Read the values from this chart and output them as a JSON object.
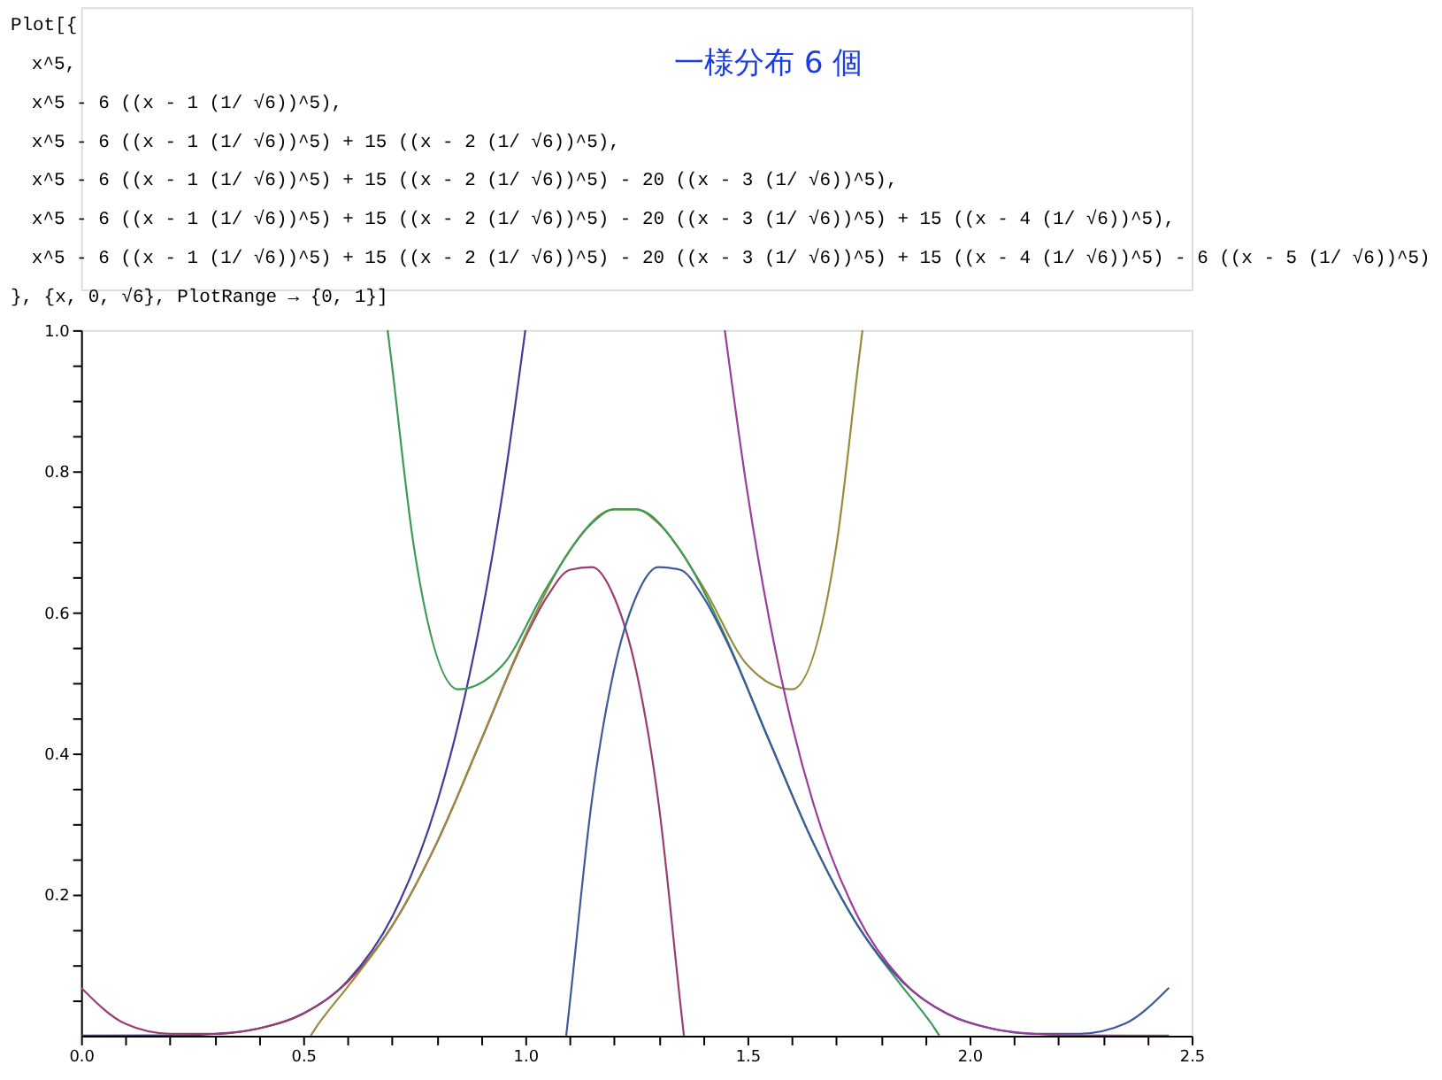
{
  "chart_data": {
    "type": "line",
    "title": "一様分布 6 個",
    "annotations": [
      "Plot[{",
      "x^5,",
      "x^5 - 6 ((x - 1 (1/ √6))^5),",
      "x^5 - 6 ((x - 1 (1/ √6))^5) + 15 ((x - 2 (1/ √6))^5),",
      "x^5 - 6 ((x - 1 (1/ √6))^5) + 15 ((x - 2 (1/ √6))^5) - 20 ((x - 3 (1/ √6))^5),",
      "x^5 - 6 ((x - 1 (1/ √6))^5) + 15 ((x - 2 (1/ √6))^5) - 20 ((x - 3 (1/ √6))^5) + 15 ((x - 4 (1/ √6))^5),",
      "x^5 - 6 ((x - 1 (1/ √6))^5) + 15 ((x - 2 (1/ √6))^5) - 20 ((x - 3 (1/ √6))^5) + 15 ((x - 4 (1/ √6))^5) - 6 ((x - 5 (1/ √6))^5)",
      "}, {x, 0, √6}, PlotRange → {0, 1}]"
    ],
    "series": [
      {
        "type": "line",
        "color": "#3d3d99",
        "x": [
          0,
          0.2,
          0.3,
          0.4,
          0.5,
          0.6,
          0.7,
          0.8,
          0.85,
          0.9,
          0.95,
          1.0
        ],
        "values": [
          0,
          0.0003,
          0.0024,
          0.0102,
          0.0313,
          0.0778,
          0.1681,
          0.3277,
          0.4437,
          0.5905,
          0.7738,
          1
        ]
      },
      {
        "type": "line",
        "color": "#993d71",
        "x": [
          0,
          0.1,
          0.2,
          0.3,
          0.4,
          0.5,
          0.6,
          0.7,
          0.8,
          0.9,
          1.0,
          1.05,
          1.1,
          1.15,
          1.2,
          1.25,
          1.3,
          1.35,
          1.357
        ],
        "values": [
          0.068,
          0.0167,
          0.0027,
          0.0025,
          0.0102,
          0.0312,
          0.0762,
          0.1554,
          0.2723,
          0.418,
          0.5646,
          0.6232,
          0.6601,
          0.6641,
          0.6215,
          0.5162,
          0.3294,
          0.0395,
          0
        ]
      },
      {
        "type": "line",
        "color": "#998b3d",
        "x": [
          0.517,
          0.53,
          0.55,
          0.6,
          0.7,
          0.8,
          0.9,
          1.0,
          1.1,
          1.2,
          1.25,
          1.3,
          1.4,
          1.5,
          1.6,
          1.7,
          1.75,
          1.759
        ],
        "values": [
          0,
          0.0127,
          0.0298,
          0.0691,
          0.1551,
          0.2723,
          0.4181,
          0.5677,
          0.6876,
          0.7459,
          0.7458,
          0.7258,
          0.6363,
          0.5252,
          0.4908,
          0.6936,
          0.9541,
          1
        ]
      },
      {
        "type": "line",
        "color": "#3d9956",
        "x": [
          0.69,
          0.699,
          0.749,
          0.849,
          0.949,
          1.049,
          1.149,
          1.199,
          1.249,
          1.349,
          1.449,
          1.549,
          1.649,
          1.749,
          1.849,
          1.899,
          1.919,
          1.932
        ],
        "values": [
          1,
          0.9541,
          0.6936,
          0.4908,
          0.5252,
          0.6363,
          0.7258,
          0.7458,
          0.7459,
          0.6876,
          0.5677,
          0.4181,
          0.2723,
          0.1551,
          0.0691,
          0.0298,
          0.0127,
          0
        ]
      },
      {
        "type": "line",
        "color": "#3d5999",
        "x": [
          1.092,
          1.099,
          1.149,
          1.199,
          1.249,
          1.299,
          1.349,
          1.399,
          1.449,
          1.549,
          1.649,
          1.749,
          1.849,
          1.949,
          2.049,
          2.149,
          2.249,
          2.349,
          2.449
        ],
        "values": [
          0,
          0.0395,
          0.3294,
          0.5162,
          0.6215,
          0.6641,
          0.6601,
          0.6232,
          0.5646,
          0.418,
          0.2723,
          0.1554,
          0.0762,
          0.0312,
          0.0102,
          0.0025,
          0.0027,
          0.0167,
          0.068
        ]
      },
      {
        "type": "line",
        "color": "#993d99",
        "x": [
          1.449,
          1.499,
          1.549,
          1.599,
          1.649,
          1.749,
          1.849,
          1.949,
          2.049,
          2.149,
          2.249,
          2.449
        ],
        "values": [
          1,
          0.7738,
          0.5905,
          0.4437,
          0.3277,
          0.1681,
          0.0778,
          0.0313,
          0.0102,
          0.0024,
          0.0003,
          0
        ]
      }
    ],
    "xlim": [
      0,
      2.5
    ],
    "ylim": [
      0,
      1
    ],
    "xticks": [
      {
        "value": 0,
        "label": "0.0"
      },
      {
        "value": 0.1,
        "label": null
      },
      {
        "value": 0.2,
        "label": null
      },
      {
        "value": 0.3,
        "label": null
      },
      {
        "value": 0.4,
        "label": null
      },
      {
        "value": 0.5,
        "label": "0.5"
      },
      {
        "value": 0.6,
        "label": null
      },
      {
        "value": 0.7,
        "label": null
      },
      {
        "value": 0.8,
        "label": null
      },
      {
        "value": 0.9,
        "label": null
      },
      {
        "value": 1,
        "label": "1.0"
      },
      {
        "value": 1.1,
        "label": null
      },
      {
        "value": 1.2,
        "label": null
      },
      {
        "value": 1.3,
        "label": null
      },
      {
        "value": 1.4,
        "label": null
      },
      {
        "value": 1.5,
        "label": "1.5"
      },
      {
        "value": 1.6,
        "label": null
      },
      {
        "value": 1.7,
        "label": null
      },
      {
        "value": 1.8,
        "label": null
      },
      {
        "value": 1.9,
        "label": null
      },
      {
        "value": 2,
        "label": "2.0"
      },
      {
        "value": 2.1,
        "label": null
      },
      {
        "value": 2.2,
        "label": null
      },
      {
        "value": 2.3,
        "label": null
      },
      {
        "value": 2.4,
        "label": null
      },
      {
        "value": 2.5,
        "label": "2.5"
      }
    ],
    "yticks": [
      {
        "value": 0.05,
        "label": null
      },
      {
        "value": 0.1,
        "label": null
      },
      {
        "value": 0.15,
        "label": null
      },
      0.2,
      {
        "value": 0.25,
        "label": null
      },
      {
        "value": 0.3,
        "label": null
      },
      {
        "value": 0.35,
        "label": null
      },
      0.4,
      {
        "value": 0.45,
        "label": null
      },
      {
        "value": 0.5,
        "label": null
      },
      {
        "value": 0.55,
        "label": null
      },
      0.6,
      {
        "value": 0.65,
        "label": null
      },
      {
        "value": 0.7,
        "label": null
      },
      {
        "value": 0.75,
        "label": null
      },
      0.8,
      {
        "value": 0.85,
        "label": null
      },
      {
        "value": 0.9,
        "label": null
      },
      {
        "value": 0.95,
        "label": null
      },
      {
        "value": 1.0,
        "label": "1.0"
      }
    ],
    "grid": false,
    "legend": false,
    "line_style": "solid",
    "marker": "none"
  }
}
